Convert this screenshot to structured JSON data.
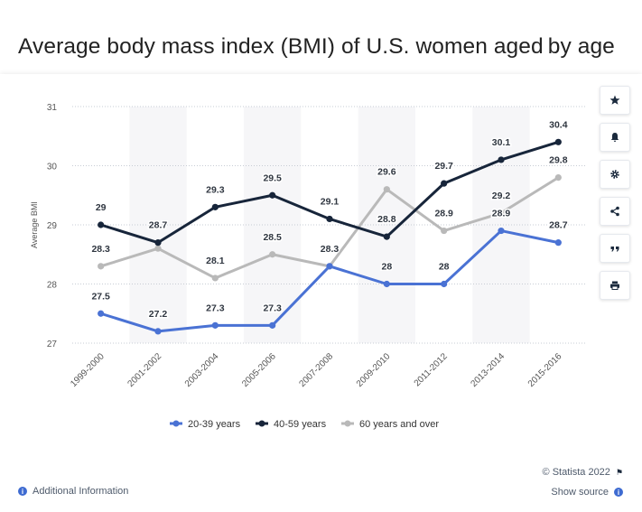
{
  "title": "Average body mass index (BMI) of U.S. women aged by age",
  "side_buttons": [
    "star-icon",
    "bell-icon",
    "gear-icon",
    "share-icon",
    "quote-icon",
    "print-icon"
  ],
  "footer": {
    "additional_info": "Additional Information",
    "credit": "© Statista 2022",
    "show_source": "Show source"
  },
  "chart_data": {
    "type": "line",
    "title": "Average body mass index (BMI) of U.S. women aged by age",
    "xlabel": "",
    "ylabel": "Average BMI",
    "ylim": [
      27,
      31
    ],
    "yticks": [
      27,
      28,
      29,
      30,
      31
    ],
    "grid": true,
    "legend_position": "bottom",
    "categories": [
      "1999-2000",
      "2001-2002",
      "2003-2004",
      "2005-2006",
      "2007-2008",
      "2009-2010",
      "2011-2012",
      "2013-2014",
      "2015-2016"
    ],
    "series": [
      {
        "name": "20-39 years",
        "color": "#4a72d4",
        "values": [
          27.5,
          27.2,
          27.3,
          27.3,
          28.3,
          28,
          28,
          28.9,
          28.7
        ]
      },
      {
        "name": "40-59 years",
        "color": "#17253a",
        "values": [
          29,
          28.7,
          29.3,
          29.5,
          29.1,
          28.8,
          29.7,
          30.1,
          30.4
        ]
      },
      {
        "name": "60 years and over",
        "color": "#b9b9b9",
        "values": [
          28.3,
          28.6,
          28.1,
          28.5,
          28.3,
          29.6,
          28.9,
          29.2,
          29.8
        ]
      }
    ],
    "data_labels": [
      [
        "27.5",
        "27.2",
        "27.3",
        "27.3",
        "28.3",
        "28",
        "28",
        "28.9",
        "28.7"
      ],
      [
        "29",
        "28.7",
        "29.3",
        "29.5",
        "29.1",
        "28.8",
        "29.7",
        "30.1",
        "30.4"
      ],
      [
        "28.3",
        "",
        "28.1",
        "28.5",
        "",
        "29.6",
        "28.9",
        "29.2",
        "29.8"
      ]
    ]
  }
}
